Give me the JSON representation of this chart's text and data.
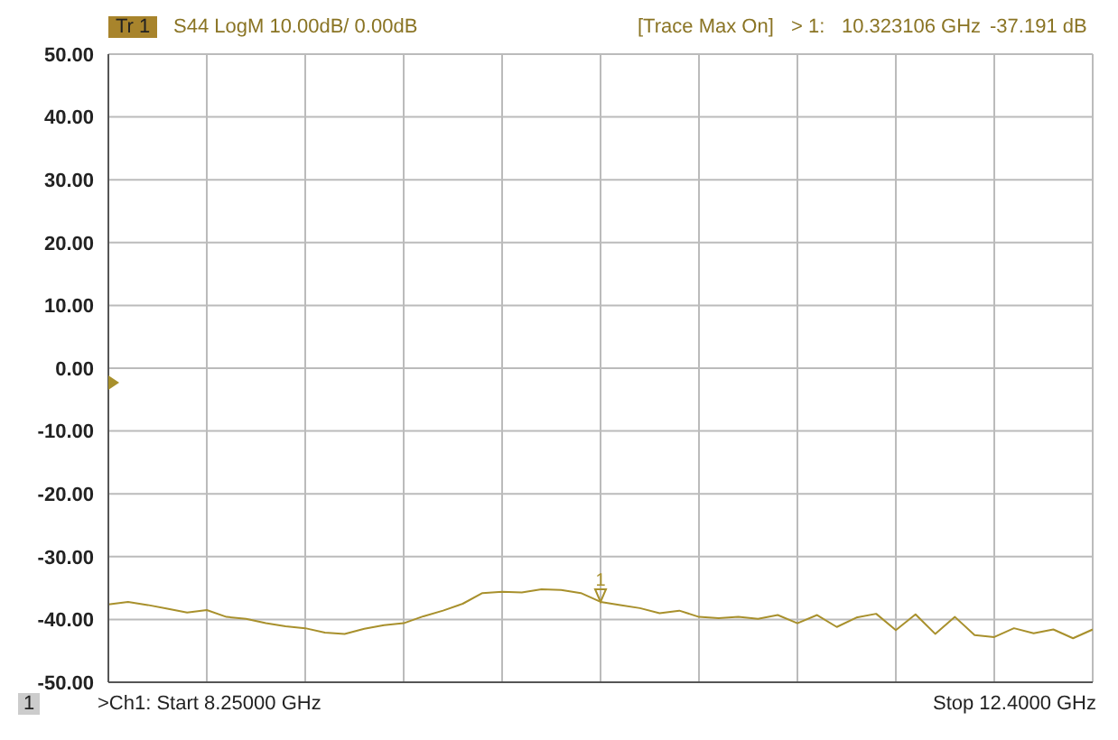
{
  "chart_data": {
    "type": "line",
    "title": "S44 LogM 10.00dB/ 0.00dB",
    "annotations": [
      "Tr 1",
      "[Trace Max On]",
      "> 1:",
      "10.323106 GHz",
      "-37.191 dB",
      "1",
      ">Ch1: Start  8.25000 GHz",
      "Stop  12.4000 GHz",
      "1"
    ],
    "categories": [
      null,
      null,
      null,
      null,
      null,
      null,
      null,
      null,
      null,
      null,
      null,
      null,
      null,
      null,
      null,
      null,
      null,
      null,
      null,
      null,
      null,
      null,
      null,
      null,
      null,
      null,
      null,
      null,
      null,
      null,
      null,
      null,
      null,
      null,
      null,
      null,
      null,
      null,
      null,
      null,
      null,
      null,
      null,
      null,
      null,
      null,
      null,
      null,
      null,
      null,
      null
    ],
    "series": [
      {
        "color": "#a8902c",
        "values": [
          -37.6,
          -37.2,
          -37.7,
          -38.3,
          -38.9,
          -38.5,
          -39.6,
          -39.9,
          -40.6,
          -41.1,
          -41.4,
          -42.1,
          -42.3,
          -41.5,
          -40.9,
          -40.6,
          -39.5,
          -38.6,
          -37.5,
          -35.8,
          -35.6,
          -35.7,
          -35.2,
          -35.3,
          -35.8,
          -37.2,
          -37.7,
          -38.2,
          -39.0,
          -38.6,
          -39.6,
          -39.8,
          -39.6,
          -39.9,
          -39.3,
          -40.6,
          -39.3,
          -41.2,
          -39.7,
          -39.1,
          -41.7,
          -39.2,
          -42.3,
          -39.6,
          -42.5,
          -42.8,
          -41.4,
          -42.2,
          -41.6,
          -43.0,
          -41.6
        ]
      }
    ],
    "ylim": [
      -50,
      50
    ],
    "yticks": [
      {
        "value": 50,
        "label": "50.00"
      },
      {
        "value": 40,
        "label": "40.00"
      },
      {
        "value": 30,
        "label": "30.00"
      },
      {
        "value": 20,
        "label": "20.00"
      },
      {
        "value": 10,
        "label": "10.00"
      },
      {
        "value": 0,
        "label": "0.00"
      },
      {
        "value": -10,
        "label": "-10.00"
      },
      {
        "value": -20,
        "label": "-20.00"
      },
      {
        "value": -30,
        "label": "-30.00"
      },
      {
        "value": -40,
        "label": "-40.00"
      },
      {
        "value": -50,
        "label": "-50.00"
      }
    ],
    "grid": true,
    "legend": false,
    "marker": "none",
    "line_style": "solid",
    "tick_labels": "y"
  }
}
